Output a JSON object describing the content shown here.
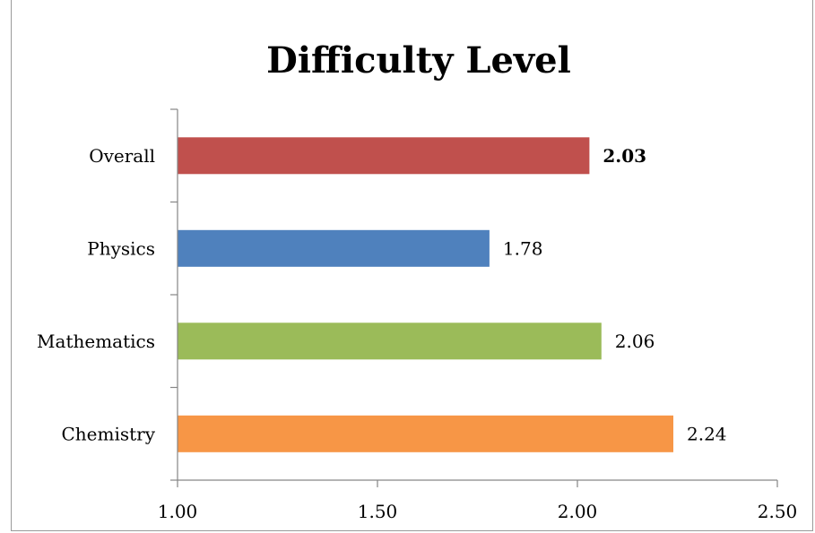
{
  "chart_data": {
    "type": "bar",
    "orientation": "horizontal",
    "title": "Difficulty Level",
    "xlabel": "",
    "ylabel": "",
    "categories": [
      "Overall",
      "Physics",
      "Mathematics",
      "Chemistry"
    ],
    "values": [
      2.03,
      1.78,
      2.06,
      2.24
    ],
    "value_labels": [
      "2.03",
      "1.78",
      "2.06",
      "2.24"
    ],
    "bold_labels": [
      true,
      false,
      false,
      false
    ],
    "colors": [
      "#c0504d",
      "#4f81bd",
      "#9bbb59",
      "#f79646"
    ],
    "xlim": [
      1.0,
      2.5
    ],
    "xticks": [
      1.0,
      1.5,
      2.0,
      2.5
    ],
    "xtick_labels": [
      "1.00",
      "1.50",
      "2.00",
      "2.50"
    ],
    "grid": false,
    "legend": "none"
  }
}
